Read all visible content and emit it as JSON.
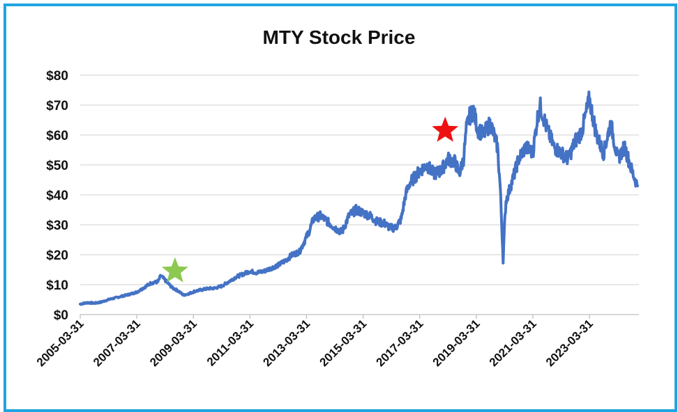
{
  "chart_data": {
    "type": "line",
    "title": "MTY Stock Price",
    "xlabel": "",
    "ylabel": "",
    "ylim": [
      0,
      80
    ],
    "yticks": [
      0,
      10,
      20,
      30,
      40,
      50,
      60,
      70,
      80
    ],
    "ytick_labels": [
      "$0",
      "$10",
      "$20",
      "$30",
      "$40",
      "$50",
      "$60",
      "$70",
      "$80"
    ],
    "xlim": [
      "2005-03-31",
      "2024-12-31"
    ],
    "xtick_labels": [
      "2005-03-31",
      "2007-03-31",
      "2009-03-31",
      "2011-03-31",
      "2013-03-31",
      "2015-03-31",
      "2017-03-31",
      "2019-03-31",
      "2021-03-31",
      "2023-03-31"
    ],
    "grid": true,
    "line_color": "#4472c4",
    "series": [
      {
        "name": "MTY",
        "x": [
          2005.25,
          2005.5,
          2005.75,
          2006.0,
          2006.25,
          2006.5,
          2006.75,
          2007.0,
          2007.25,
          2007.5,
          2007.75,
          2008.0,
          2008.1,
          2008.3,
          2008.5,
          2008.7,
          2008.9,
          2009.1,
          2009.3,
          2009.5,
          2009.75,
          2010.0,
          2010.25,
          2010.5,
          2010.75,
          2011.0,
          2011.25,
          2011.5,
          2011.75,
          2012.0,
          2012.25,
          2012.5,
          2012.75,
          2013.0,
          2013.15,
          2013.35,
          2013.5,
          2013.75,
          2014.0,
          2014.25,
          2014.5,
          2014.75,
          2015.0,
          2015.25,
          2015.5,
          2015.75,
          2016.0,
          2016.2,
          2016.4,
          2016.6,
          2016.75,
          2016.9,
          2017.0,
          2017.25,
          2017.5,
          2017.75,
          2018.0,
          2018.25,
          2018.5,
          2018.65,
          2018.8,
          2018.9,
          2019.0,
          2019.15,
          2019.3,
          2019.5,
          2019.75,
          2020.0,
          2020.1,
          2020.2,
          2020.25,
          2020.3,
          2020.5,
          2020.75,
          2021.0,
          2021.25,
          2021.4,
          2021.5,
          2021.75,
          2022.0,
          2022.25,
          2022.5,
          2022.75,
          2022.9,
          2023.0,
          2023.25,
          2023.5,
          2023.75,
          2024.0,
          2024.25,
          2024.5,
          2024.75,
          2024.95
        ],
        "values": [
          3.5,
          4,
          3.8,
          4.2,
          5,
          5.6,
          6.2,
          6.8,
          7.5,
          9,
          10.5,
          11,
          13,
          11,
          9,
          8,
          6.5,
          7,
          7.8,
          8.2,
          8.7,
          8.8,
          9.5,
          11,
          12.5,
          13.5,
          14.5,
          14,
          14.5,
          15.5,
          16.5,
          18,
          20,
          21,
          24,
          28,
          32,
          33,
          31,
          29,
          27.5,
          33,
          35,
          34,
          33,
          31,
          30.5,
          29,
          29,
          32,
          40,
          44,
          45,
          48,
          50,
          47,
          48,
          52,
          51,
          47,
          52,
          62,
          66,
          68,
          62,
          60,
          64,
          56,
          42,
          18,
          30,
          38,
          44,
          52,
          56,
          54,
          65,
          70,
          62,
          56,
          54,
          52,
          58,
          60,
          62,
          72,
          60,
          54,
          64,
          52,
          56,
          48,
          43
        ]
      }
    ],
    "annotations": [
      {
        "type": "star",
        "label": "green-star",
        "x": 2008.6,
        "y": 14.5,
        "color": "#8dc850"
      },
      {
        "type": "star",
        "label": "red-star",
        "x": 2018.15,
        "y": 61.5,
        "color": "#ee1111"
      }
    ]
  }
}
